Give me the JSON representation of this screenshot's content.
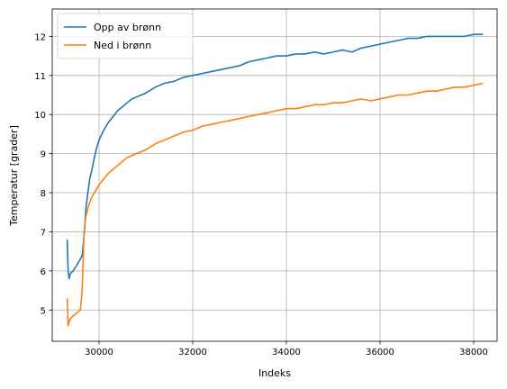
{
  "chart_data": {
    "type": "line",
    "title": "",
    "xlabel": "Indeks",
    "ylabel": "Temperatur [grader]",
    "xlim": [
      29000,
      38500
    ],
    "ylim": [
      4.2,
      12.7
    ],
    "xticks": [
      30000,
      32000,
      34000,
      36000,
      38000
    ],
    "yticks": [
      5,
      6,
      7,
      8,
      9,
      10,
      11,
      12
    ],
    "grid": true,
    "legend_position": "top-left",
    "series": [
      {
        "name": "Opp av brønn",
        "color": "#1f77b4",
        "x": [
          29320,
          29340,
          29360,
          29380,
          29400,
          29450,
          29500,
          29550,
          29600,
          29640,
          29680,
          29720,
          29760,
          29800,
          29850,
          29900,
          29950,
          30000,
          30100,
          30200,
          30300,
          30400,
          30500,
          30600,
          30700,
          30800,
          30900,
          31000,
          31200,
          31400,
          31600,
          31800,
          32000,
          32200,
          32400,
          32600,
          32800,
          33000,
          33200,
          33400,
          33600,
          33800,
          34000,
          34200,
          34400,
          34600,
          34800,
          35000,
          35200,
          35400,
          35600,
          35800,
          36000,
          36200,
          36400,
          36600,
          36800,
          37000,
          37200,
          37400,
          37600,
          37800,
          38000,
          38200
        ],
        "values": [
          6.8,
          6.0,
          5.8,
          5.9,
          5.95,
          6.0,
          6.1,
          6.2,
          6.3,
          6.4,
          6.9,
          7.6,
          8.0,
          8.35,
          8.6,
          8.9,
          9.15,
          9.35,
          9.6,
          9.8,
          9.95,
          10.1,
          10.2,
          10.3,
          10.4,
          10.45,
          10.5,
          10.55,
          10.7,
          10.8,
          10.85,
          10.95,
          11.0,
          11.05,
          11.1,
          11.15,
          11.2,
          11.25,
          11.35,
          11.4,
          11.45,
          11.5,
          11.5,
          11.55,
          11.55,
          11.6,
          11.55,
          11.6,
          11.65,
          11.6,
          11.7,
          11.75,
          11.8,
          11.85,
          11.9,
          11.95,
          11.95,
          12.0,
          12.0,
          12.0,
          12.0,
          12.0,
          12.05,
          12.05
        ]
      },
      {
        "name": "Ned i brønn",
        "color": "#ff7f0e",
        "x": [
          29320,
          29340,
          29360,
          29400,
          29450,
          29500,
          29550,
          29600,
          29640,
          29680,
          29720,
          29760,
          29800,
          29850,
          29900,
          29950,
          30000,
          30100,
          30200,
          30300,
          30400,
          30500,
          30600,
          30700,
          30800,
          30900,
          31000,
          31200,
          31400,
          31600,
          31800,
          32000,
          32200,
          32400,
          32600,
          32800,
          33000,
          33200,
          33400,
          33600,
          33800,
          34000,
          34200,
          34400,
          34600,
          34800,
          35000,
          35200,
          35400,
          35600,
          35800,
          36000,
          36200,
          36400,
          36600,
          36800,
          37000,
          37200,
          37400,
          37600,
          37800,
          38000,
          38200
        ],
        "values": [
          5.3,
          4.6,
          4.7,
          4.8,
          4.85,
          4.9,
          4.95,
          5.0,
          5.5,
          7.0,
          7.4,
          7.6,
          7.75,
          7.9,
          8.0,
          8.1,
          8.2,
          8.35,
          8.5,
          8.6,
          8.7,
          8.8,
          8.9,
          8.95,
          9.0,
          9.05,
          9.1,
          9.25,
          9.35,
          9.45,
          9.55,
          9.6,
          9.7,
          9.75,
          9.8,
          9.85,
          9.9,
          9.95,
          10.0,
          10.05,
          10.1,
          10.15,
          10.15,
          10.2,
          10.25,
          10.25,
          10.3,
          10.3,
          10.35,
          10.4,
          10.35,
          10.4,
          10.45,
          10.5,
          10.5,
          10.55,
          10.6,
          10.6,
          10.65,
          10.7,
          10.7,
          10.75,
          10.8
        ]
      }
    ]
  }
}
